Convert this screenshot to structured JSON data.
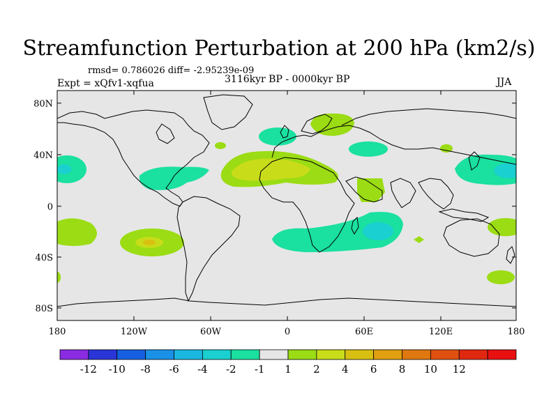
{
  "title": "Streamfunction Perturbation at 200 hPa (km2/s)",
  "stats": "rmsd= 0.786026 diff= -2.95239e-09",
  "experiment": "Expt = xQfv1-xqfua",
  "period": "3116kyr BP - 0000kyr BP",
  "season": "JJA",
  "lat_ticks": [
    "80N",
    "40N",
    "0",
    "40S",
    "80S"
  ],
  "lon_ticks": [
    "180",
    "120W",
    "60W",
    "0",
    "60E",
    "120E",
    "180"
  ],
  "colorbar": {
    "colors": [
      "#8a2be2",
      "#2a35d8",
      "#1560e0",
      "#1a90e6",
      "#1ab8e0",
      "#1ad0d0",
      "#1ae0a0",
      "#e6e6e6",
      "#9bdc14",
      "#c8dc1a",
      "#d8c010",
      "#e0a010",
      "#e07810",
      "#e05010",
      "#e02810",
      "#e81010"
    ],
    "labels": [
      "-12",
      "-10",
      "-8",
      "-6",
      "-4",
      "-2",
      "-1",
      "1",
      "2",
      "4",
      "6",
      "8",
      "10",
      "12"
    ]
  },
  "colors": {
    "background": "#e6e6e6",
    "neg1": "#1ae0a0",
    "neg2": "#1ad0d0",
    "pos1": "#9bdc14",
    "pos2": "#c8dc1a",
    "pos3": "#d8c010"
  }
}
